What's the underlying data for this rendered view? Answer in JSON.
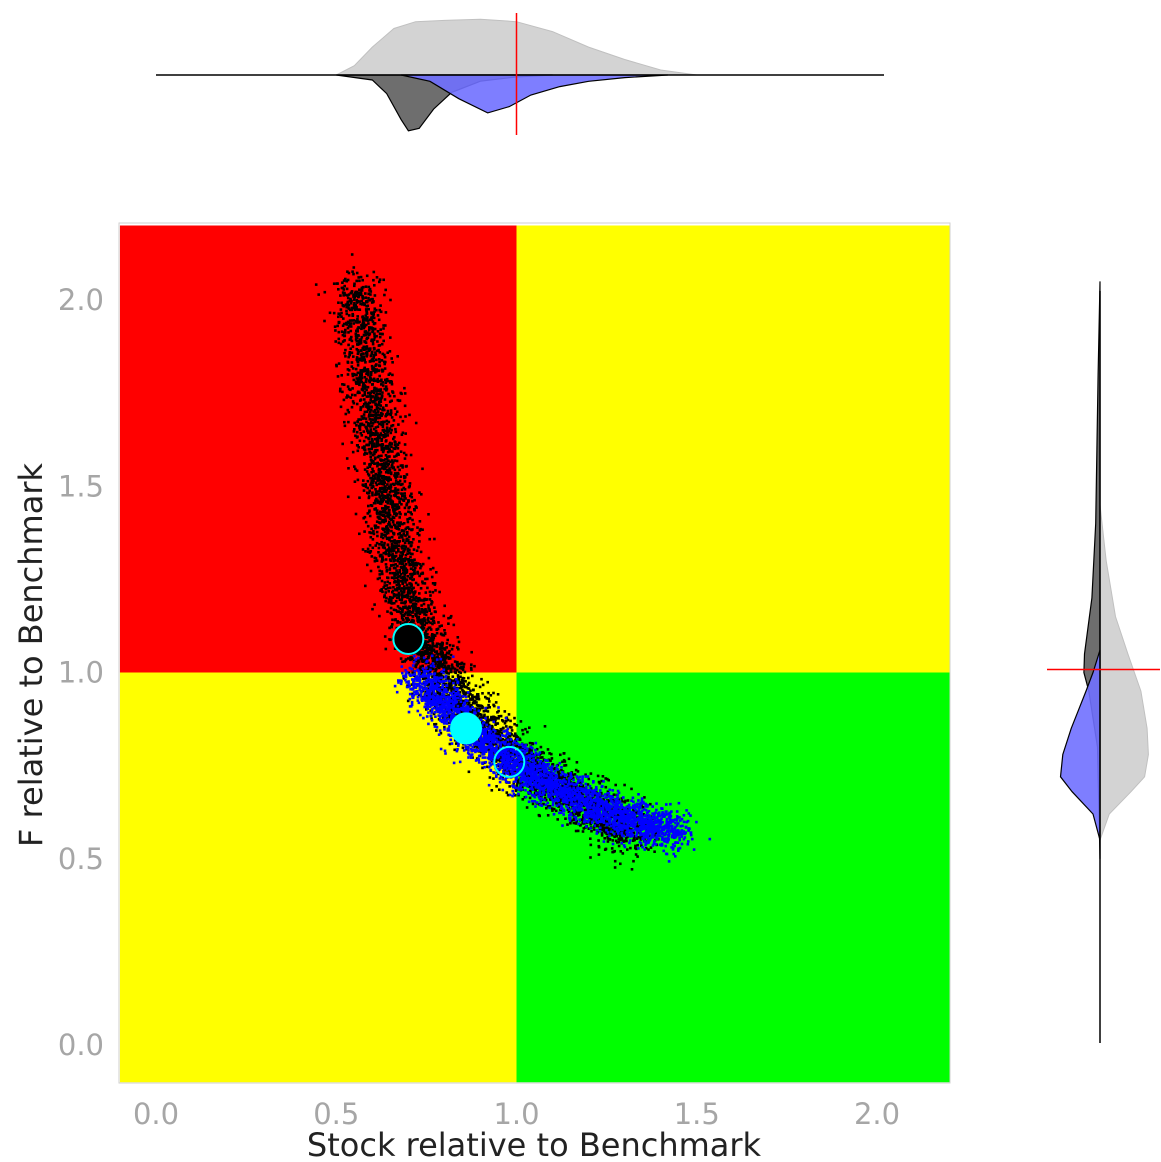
{
  "chart_data": {
    "type": "scatter",
    "xlabel": "Stock relative to Benchmark",
    "ylabel": "F relative to Benchmark",
    "xlim": [
      -0.1,
      2.25
    ],
    "ylim": [
      -0.1,
      2.2
    ],
    "xticks": [
      "0.0",
      "0.5",
      "1.0",
      "1.5",
      "2.0"
    ],
    "yticks": [
      "0.0",
      "0.5",
      "1.0",
      "1.5",
      "2.0"
    ],
    "grid": false,
    "legend": "none",
    "reference_lines": {
      "stock": 1.0,
      "f": 1.0
    },
    "quadrants": [
      {
        "x": [
          -0.1,
          1.0
        ],
        "y": [
          1.0,
          2.2
        ],
        "color": "#ff0000"
      },
      {
        "x": [
          1.0,
          2.25
        ],
        "y": [
          1.0,
          2.2
        ],
        "color": "#ffff00"
      },
      {
        "x": [
          -0.1,
          1.0
        ],
        "y": [
          -0.1,
          1.0
        ],
        "color": "#ffff00"
      },
      {
        "x": [
          1.0,
          2.25
        ],
        "y": [
          -0.1,
          1.0
        ],
        "color": "#00ff00"
      }
    ],
    "series": [
      {
        "color": "#000000",
        "curve": [
          [
            0.55,
            2.05
          ],
          [
            0.59,
            1.8
          ],
          [
            0.63,
            1.55
          ],
          [
            0.67,
            1.32
          ],
          [
            0.72,
            1.12
          ],
          [
            0.8,
            0.97
          ],
          [
            0.9,
            0.85
          ],
          [
            1.05,
            0.73
          ],
          [
            1.2,
            0.64
          ],
          [
            1.35,
            0.56
          ]
        ],
        "n_points": 5000,
        "summary_marker": {
          "x": 0.7,
          "y": 1.09,
          "fill": "#000000",
          "edge": "#00ffff"
        },
        "x_density": [
          [
            0.5,
            0.0
          ],
          [
            0.6,
            0.08
          ],
          [
            0.64,
            0.3
          ],
          [
            0.68,
            0.72
          ],
          [
            0.7,
            0.9
          ],
          [
            0.73,
            0.86
          ],
          [
            0.77,
            0.55
          ],
          [
            0.82,
            0.28
          ],
          [
            0.9,
            0.1
          ],
          [
            1.0,
            0.03
          ],
          [
            1.1,
            0.0
          ]
        ],
        "y_density": [
          [
            0.5,
            0.0
          ],
          [
            0.8,
            0.04
          ],
          [
            0.95,
            0.18
          ],
          [
            1.0,
            0.26
          ],
          [
            1.05,
            0.25
          ],
          [
            1.2,
            0.13
          ],
          [
            1.4,
            0.07
          ],
          [
            1.6,
            0.05
          ],
          [
            1.8,
            0.03
          ],
          [
            2.05,
            0.0
          ]
        ]
      },
      {
        "color": "#0000ff",
        "curve": [
          [
            0.72,
            1.0
          ],
          [
            0.8,
            0.91
          ],
          [
            0.88,
            0.84
          ],
          [
            0.97,
            0.77
          ],
          [
            1.05,
            0.72
          ],
          [
            1.15,
            0.67
          ],
          [
            1.25,
            0.63
          ],
          [
            1.35,
            0.59
          ],
          [
            1.45,
            0.57
          ]
        ],
        "n_points": 3000,
        "summary_marker": {
          "x": 0.86,
          "y": 0.85,
          "fill": "#00ffff",
          "edge": "#00ffff"
        },
        "x_density": [
          [
            0.68,
            0.0
          ],
          [
            0.76,
            0.12
          ],
          [
            0.84,
            0.45
          ],
          [
            0.92,
            0.72
          ],
          [
            0.98,
            0.6
          ],
          [
            1.04,
            0.38
          ],
          [
            1.12,
            0.22
          ],
          [
            1.2,
            0.12
          ],
          [
            1.3,
            0.05
          ],
          [
            1.42,
            0.0
          ]
        ],
        "y_density": [
          [
            0.55,
            0.0
          ],
          [
            0.62,
            0.15
          ],
          [
            0.68,
            0.6
          ],
          [
            0.72,
            0.85
          ],
          [
            0.78,
            0.8
          ],
          [
            0.85,
            0.62
          ],
          [
            0.9,
            0.46
          ],
          [
            0.95,
            0.3
          ],
          [
            1.0,
            0.15
          ],
          [
            1.06,
            0.0
          ]
        ]
      },
      {
        "color": "#cccccc",
        "summary_marker": {
          "x": 0.98,
          "y": 0.76,
          "fill": "none",
          "edge": "#00ffff"
        },
        "x_density": [
          [
            0.5,
            0.0
          ],
          [
            0.55,
            0.15
          ],
          [
            0.6,
            0.45
          ],
          [
            0.66,
            0.75
          ],
          [
            0.72,
            0.86
          ],
          [
            0.8,
            0.88
          ],
          [
            0.9,
            0.9
          ],
          [
            1.0,
            0.86
          ],
          [
            1.1,
            0.7
          ],
          [
            1.2,
            0.45
          ],
          [
            1.3,
            0.25
          ],
          [
            1.4,
            0.08
          ],
          [
            1.5,
            0.0
          ]
        ],
        "y_density": [
          [
            0.55,
            0.0
          ],
          [
            0.62,
            0.15
          ],
          [
            0.68,
            0.5
          ],
          [
            0.72,
            0.72
          ],
          [
            0.78,
            0.78
          ],
          [
            0.85,
            0.76
          ],
          [
            0.95,
            0.66
          ],
          [
            1.05,
            0.45
          ],
          [
            1.15,
            0.25
          ],
          [
            1.3,
            0.1
          ],
          [
            1.45,
            0.0
          ]
        ]
      }
    ]
  }
}
